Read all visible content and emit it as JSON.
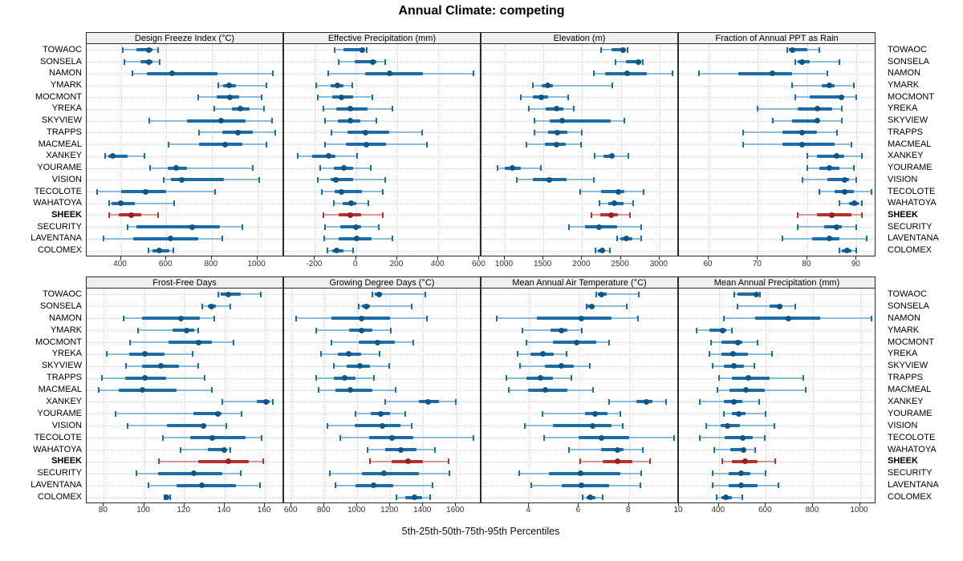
{
  "title": "Annual Climate: competing",
  "axis_caption": "5th-25th-50th-75th-95th Percentiles",
  "percentiles": [
    5,
    25,
    50,
    75,
    95
  ],
  "highlight_station": "SHEEK",
  "stations": [
    "TOWAOC",
    "SONSELA",
    "NAMON",
    "YMARK",
    "MOCMONT",
    "YREKA",
    "SKYVIEW",
    "TRAPPS",
    "MACMEAL",
    "XANKEY",
    "YOURAME",
    "VISION",
    "TECOLOTE",
    "WAHATOYA",
    "SHEEK",
    "SECURITY",
    "LAVENTANA",
    "COLOMEX"
  ],
  "colors": {
    "blue_bar": "#1b6ca8",
    "blue_dot": "#0e5687",
    "blue_whisker": "#8cbcdc",
    "red_bar": "#b5322d",
    "red_dot": "#9c1f1c",
    "red_whisker": "#dd9691",
    "grid": "#cfcfcf",
    "panel_border": "#2b2b2b",
    "strip_bg": "#efefef"
  },
  "chart_data": [
    {
      "type": "interval-dotplot",
      "title": "Design Freeze Index (°C)",
      "ticks": [
        400,
        600,
        800,
        1000
      ],
      "domain": [
        250,
        1118
      ],
      "values": [
        [
          410,
          470,
          525,
          540,
          565
        ],
        [
          415,
          485,
          525,
          540,
          570
        ],
        [
          450,
          515,
          625,
          825,
          1070
        ],
        [
          830,
          850,
          875,
          905,
          1040
        ],
        [
          740,
          820,
          880,
          920,
          1020
        ],
        [
          810,
          890,
          925,
          965,
          1030
        ],
        [
          525,
          690,
          840,
          950,
          1065
        ],
        [
          745,
          845,
          915,
          980,
          1080
        ],
        [
          610,
          745,
          860,
          935,
          1040
        ],
        [
          330,
          345,
          365,
          430,
          505
        ],
        [
          530,
          605,
          645,
          690,
          980
        ],
        [
          590,
          620,
          668,
          855,
          1010
        ],
        [
          295,
          400,
          510,
          600,
          815
        ],
        [
          350,
          360,
          400,
          460,
          635
        ],
        [
          350,
          390,
          445,
          490,
          565
        ],
        [
          430,
          470,
          715,
          835,
          935
        ],
        [
          325,
          455,
          620,
          740,
          845
        ],
        [
          520,
          540,
          570,
          615,
          630
        ]
      ]
    },
    {
      "type": "interval-dotplot",
      "title": "Effective Precipitation (mm)",
      "ticks": [
        -200,
        0,
        200,
        400,
        600
      ],
      "domain": [
        -350,
        610
      ],
      "values": [
        [
          -105,
          -60,
          30,
          40,
          50
        ],
        [
          -85,
          -5,
          80,
          100,
          140
        ],
        [
          -135,
          45,
          165,
          325,
          570
        ],
        [
          -195,
          -125,
          -90,
          -60,
          -20
        ],
        [
          -185,
          -115,
          -70,
          -15,
          80
        ],
        [
          -160,
          -95,
          -30,
          55,
          175
        ],
        [
          -150,
          -90,
          -30,
          20,
          100
        ],
        [
          -120,
          -40,
          45,
          160,
          320
        ],
        [
          -150,
          -50,
          50,
          145,
          345
        ],
        [
          -285,
          -215,
          -135,
          -100,
          5
        ],
        [
          -175,
          -110,
          -60,
          -15,
          70
        ],
        [
          -185,
          -125,
          -100,
          -15,
          140
        ],
        [
          -165,
          -105,
          -70,
          30,
          130
        ],
        [
          -110,
          -65,
          -25,
          0,
          60
        ],
        [
          -160,
          -85,
          -30,
          25,
          130
        ],
        [
          -150,
          -75,
          0,
          25,
          110
        ],
        [
          -155,
          -85,
          5,
          75,
          175
        ],
        [
          -140,
          -115,
          -95,
          -60,
          -15
        ]
      ]
    },
    {
      "type": "interval-dotplot",
      "title": "Elevation (m)",
      "ticks": [
        1000,
        1500,
        2000,
        2500,
        3000
      ],
      "domain": [
        700,
        3250
      ],
      "values": [
        [
          2240,
          2380,
          2530,
          2560,
          2590
        ],
        [
          2430,
          2565,
          2730,
          2760,
          2785
        ],
        [
          2150,
          2300,
          2585,
          2835,
          3170
        ],
        [
          1360,
          1480,
          1550,
          1620,
          2385
        ],
        [
          1205,
          1360,
          1470,
          1565,
          1815
        ],
        [
          1310,
          1530,
          1670,
          1760,
          1895
        ],
        [
          1380,
          1585,
          1740,
          2370,
          2550
        ],
        [
          1380,
          1565,
          1680,
          1805,
          2000
        ],
        [
          1285,
          1515,
          1670,
          1785,
          1990
        ],
        [
          2160,
          2275,
          2380,
          2415,
          2600
        ],
        [
          905,
          1000,
          1095,
          1205,
          1470
        ],
        [
          1160,
          1360,
          1575,
          1795,
          2150
        ],
        [
          1980,
          2240,
          2470,
          2550,
          2795
        ],
        [
          2220,
          2335,
          2420,
          2530,
          2655
        ],
        [
          2125,
          2230,
          2370,
          2460,
          2620
        ],
        [
          1830,
          2035,
          2220,
          2450,
          2760
        ],
        [
          2450,
          2495,
          2575,
          2645,
          2760
        ],
        [
          2170,
          2205,
          2255,
          2300,
          2360
        ]
      ]
    },
    {
      "type": "interval-dotplot",
      "title": "Fraction of Annual PPT as Rain",
      "ticks": [
        60,
        70,
        80,
        90
      ],
      "domain": [
        54,
        94
      ],
      "values": [
        [
          76,
          76.3,
          77,
          80,
          82.5
        ],
        [
          77.5,
          78,
          79,
          80.5,
          86.5
        ],
        [
          58,
          66,
          73,
          77,
          84
        ],
        [
          77,
          83,
          84.5,
          85.5,
          89.5
        ],
        [
          77.5,
          80.5,
          87,
          87.5,
          90
        ],
        [
          70,
          78,
          82,
          85,
          87
        ],
        [
          73,
          77,
          82,
          82.5,
          87
        ],
        [
          67,
          75,
          79,
          82,
          86
        ],
        [
          67,
          75,
          79,
          85.5,
          89
        ],
        [
          80,
          82,
          86,
          87.5,
          91
        ],
        [
          80,
          82.5,
          84.5,
          86.5,
          89.5
        ],
        [
          79,
          84,
          87.5,
          88.5,
          90
        ],
        [
          82.5,
          85.5,
          87.5,
          89.5,
          93
        ],
        [
          86.5,
          88.5,
          89.5,
          90.5,
          91
        ],
        [
          78,
          82,
          85,
          89,
          91
        ],
        [
          78,
          83.5,
          86,
          87,
          90
        ],
        [
          75,
          81,
          84.5,
          86.5,
          92
        ],
        [
          86.5,
          87,
          88,
          89,
          90
        ]
      ]
    },
    {
      "type": "interval-dotplot",
      "title": "Frost-Free Days",
      "ticks": [
        80,
        100,
        120,
        140,
        160
      ],
      "domain": [
        71.5,
        169.5
      ],
      "values": [
        [
          137,
          138,
          142,
          148,
          158
        ],
        [
          129,
          131.5,
          133.5,
          135.5,
          143
        ],
        [
          90,
          99,
          118.5,
          127.5,
          135
        ],
        [
          97,
          114,
          121,
          125,
          127
        ],
        [
          93,
          112,
          127,
          133.5,
          144.5
        ],
        [
          81.5,
          92.5,
          100.5,
          110,
          124
        ],
        [
          91,
          99,
          108.5,
          117.5,
          127
        ],
        [
          79,
          90.5,
          100.5,
          111,
          130
        ],
        [
          77.5,
          87.5,
          99,
          116,
          133.5
        ],
        [
          139,
          156,
          160.5,
          162.5,
          164
        ],
        [
          86,
          124.5,
          136.5,
          138.5,
          148.5
        ],
        [
          92,
          111.5,
          129.5,
          131,
          141
        ],
        [
          109.5,
          123,
          134,
          150.5,
          158.5
        ],
        [
          118,
          131.5,
          140,
          141,
          143
        ],
        [
          107.5,
          127,
          142,
          152,
          159
        ],
        [
          96,
          107,
          124.5,
          139,
          148
        ],
        [
          102,
          116,
          128.5,
          145.5,
          157.5
        ],
        [
          110,
          110.5,
          111,
          112,
          113
        ]
      ]
    },
    {
      "type": "interval-dotplot",
      "title": "Growing Degree Days (°C)",
      "ticks": [
        600,
        800,
        1000,
        1200,
        1400,
        1600
      ],
      "domain": [
        555,
        1755
      ],
      "values": [
        [
          1090,
          1105,
          1135,
          1150,
          1415
        ],
        [
          1010,
          1030,
          1055,
          1075,
          1330
        ],
        [
          630,
          845,
          1025,
          1200,
          1425
        ],
        [
          750,
          950,
          1025,
          1090,
          1205
        ],
        [
          845,
          1010,
          1125,
          1230,
          1340
        ],
        [
          780,
          880,
          950,
          1025,
          1135
        ],
        [
          855,
          935,
          1015,
          1075,
          1195
        ],
        [
          750,
          855,
          925,
          990,
          1100
        ],
        [
          765,
          865,
          958,
          1090,
          1235
        ],
        [
          1170,
          1375,
          1430,
          1495,
          1600
        ],
        [
          990,
          1080,
          1145,
          1200,
          1290
        ],
        [
          820,
          985,
          1153,
          1260,
          1330
        ],
        [
          895,
          1070,
          1210,
          1340,
          1705
        ],
        [
          1060,
          1170,
          1265,
          1360,
          1470
        ],
        [
          1075,
          1210,
          1310,
          1400,
          1555
        ],
        [
          835,
          1030,
          1163,
          1375,
          1560
        ],
        [
          865,
          990,
          1100,
          1220,
          1455
        ],
        [
          1240,
          1290,
          1350,
          1395,
          1445
        ]
      ]
    },
    {
      "type": "interval-dotplot",
      "title": "Mean Annual Air Temperature (°C)",
      "ticks": [
        4,
        6,
        8,
        10
      ],
      "domain": [
        2.1,
        10.0
      ],
      "values": [
        [
          6.7,
          6.75,
          6.9,
          7.1,
          8.4
        ],
        [
          6.3,
          6.35,
          6.5,
          6.6,
          7.9
        ],
        [
          2.7,
          4.3,
          6.1,
          7.3,
          8.35
        ],
        [
          3.75,
          4.85,
          5.3,
          5.55,
          6.1
        ],
        [
          3.9,
          4.95,
          5.9,
          6.7,
          7.2
        ],
        [
          3.55,
          4.05,
          4.55,
          5.0,
          5.5
        ],
        [
          3.65,
          4.65,
          5.3,
          5.8,
          6.45
        ],
        [
          3.1,
          3.9,
          4.45,
          4.95,
          5.7
        ],
        [
          3.2,
          3.95,
          4.65,
          5.55,
          6.55
        ],
        [
          7.2,
          8.3,
          8.7,
          8.95,
          9.5
        ],
        [
          4.55,
          6.25,
          6.65,
          7.15,
          7.65
        ],
        [
          3.85,
          4.95,
          6.55,
          7.3,
          7.75
        ],
        [
          4.6,
          6.0,
          6.9,
          8.0,
          9.8
        ],
        [
          5.6,
          6.9,
          7.55,
          7.8,
          8.55
        ],
        [
          6.05,
          6.95,
          7.55,
          8.15,
          8.85
        ],
        [
          3.6,
          4.8,
          6.05,
          7.65,
          8.5
        ],
        [
          4.1,
          5.3,
          6.1,
          7.2,
          8.45
        ],
        [
          6.15,
          6.3,
          6.45,
          6.65,
          6.95
        ]
      ]
    },
    {
      "type": "interval-dotplot",
      "title": "Mean Annual Precipitation (mm)",
      "ticks": [
        400,
        600,
        800,
        1000
      ],
      "domain": [
        230,
        1070
      ],
      "values": [
        [
          465,
          480,
          560,
          565,
          575
        ],
        [
          480,
          615,
          660,
          670,
          725
        ],
        [
          420,
          555,
          695,
          830,
          1050
        ],
        [
          305,
          360,
          415,
          430,
          455
        ],
        [
          365,
          410,
          480,
          500,
          565
        ],
        [
          360,
          410,
          460,
          525,
          625
        ],
        [
          375,
          420,
          465,
          505,
          550
        ],
        [
          400,
          455,
          525,
          615,
          760
        ],
        [
          395,
          445,
          515,
          595,
          770
        ],
        [
          320,
          420,
          465,
          500,
          570
        ],
        [
          420,
          455,
          483,
          515,
          600
        ],
        [
          345,
          408,
          435,
          490,
          635
        ],
        [
          320,
          423,
          502,
          545,
          595
        ],
        [
          380,
          450,
          505,
          515,
          555
        ],
        [
          415,
          455,
          510,
          565,
          640
        ],
        [
          375,
          440,
          495,
          535,
          600
        ],
        [
          375,
          440,
          495,
          565,
          655
        ],
        [
          390,
          410,
          430,
          455,
          500
        ]
      ]
    }
  ]
}
